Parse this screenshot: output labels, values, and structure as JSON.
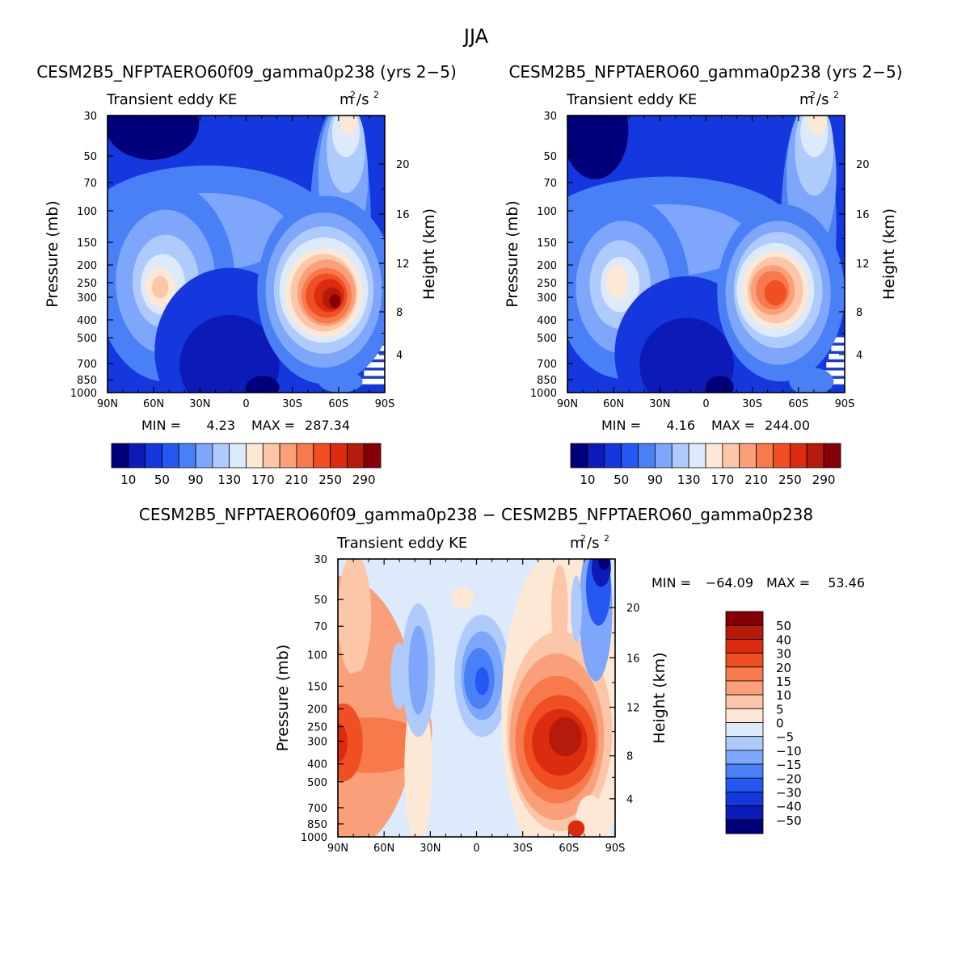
{
  "page": {
    "title": "JJA"
  },
  "chart_data": [
    {
      "type": "heatmap",
      "title": "CESM2B5_NFPTAERO60f09_gamma0p238 (yrs 2−5)",
      "subtitle_left": "Transient eddy KE",
      "units_base": "m",
      "units_exp1": "2",
      "units_mid": "/s",
      "units_exp2": "2",
      "ylabel": "Pressure (mb)",
      "ylabel_right": "Height (km)",
      "xticks": [
        "90N",
        "60N",
        "30N",
        "0",
        "30S",
        "60S",
        "90S"
      ],
      "yticks": [
        "30",
        "50",
        "70",
        "100",
        "150",
        "200",
        "250",
        "300",
        "400",
        "500",
        "700",
        "850",
        "1000"
      ],
      "height_ticks": [
        "20",
        "16",
        "12",
        "8",
        "4"
      ],
      "stats": {
        "min_label": "MIN =",
        "min": "4.23",
        "max_label": "MAX =",
        "max": "287.34"
      },
      "colorbar_labels": [
        "10",
        "50",
        "90",
        "130",
        "170",
        "210",
        "250",
        "290"
      ],
      "colorbar_colors": [
        "#00007a",
        "#0c1ab8",
        "#1438de",
        "#2458f0",
        "#4a80f6",
        "#7ea6fa",
        "#aecbfc",
        "#dceafc",
        "#fde8d5",
        "#fcc6a8",
        "#f9a07a",
        "#f67a4c",
        "#f04e23",
        "#dc2c10",
        "#b51a0a",
        "#850006"
      ]
    },
    {
      "type": "heatmap",
      "title": "CESM2B5_NFPTAERO60_gamma0p238 (yrs 2−5)",
      "subtitle_left": "Transient eddy KE",
      "units_base": "m",
      "units_exp1": "2",
      "units_mid": "/s",
      "units_exp2": "2",
      "ylabel": "Pressure (mb)",
      "ylabel_right": "Height (km)",
      "xticks": [
        "90N",
        "60N",
        "30N",
        "0",
        "30S",
        "60S",
        "90S"
      ],
      "yticks": [
        "30",
        "50",
        "70",
        "100",
        "150",
        "200",
        "250",
        "300",
        "400",
        "500",
        "700",
        "850",
        "1000"
      ],
      "height_ticks": [
        "20",
        "16",
        "12",
        "8",
        "4"
      ],
      "stats": {
        "min_label": "MIN =",
        "min": "4.16",
        "max_label": "MAX =",
        "max": "244.00"
      },
      "colorbar_labels": [
        "10",
        "50",
        "90",
        "130",
        "170",
        "210",
        "250",
        "290"
      ],
      "colorbar_colors": [
        "#00007a",
        "#0c1ab8",
        "#1438de",
        "#2458f0",
        "#4a80f6",
        "#7ea6fa",
        "#aecbfc",
        "#dceafc",
        "#fde8d5",
        "#fcc6a8",
        "#f9a07a",
        "#f67a4c",
        "#f04e23",
        "#dc2c10",
        "#b51a0a",
        "#850006"
      ]
    },
    {
      "type": "heatmap",
      "title": "CESM2B5_NFPTAERO60f09_gamma0p238 − CESM2B5_NFPTAERO60_gamma0p238",
      "subtitle_left": "Transient eddy KE",
      "units_base": "m",
      "units_exp1": "2",
      "units_mid": "/s",
      "units_exp2": "2",
      "ylabel": "Pressure (mb)",
      "ylabel_right": "Height (km)",
      "xticks": [
        "90N",
        "60N",
        "30N",
        "0",
        "30S",
        "60S",
        "90S"
      ],
      "yticks": [
        "30",
        "50",
        "70",
        "100",
        "150",
        "200",
        "250",
        "300",
        "400",
        "500",
        "700",
        "850",
        "1000"
      ],
      "height_ticks": [
        "20",
        "16",
        "12",
        "8",
        "4"
      ],
      "stats": {
        "min_label": "MIN =",
        "min": "−64.09",
        "max_label": "MAX =",
        "max": "53.46"
      },
      "colorbar_labels": [
        "50",
        "40",
        "30",
        "20",
        "15",
        "10",
        "5",
        "0",
        "−5",
        "−10",
        "−15",
        "−20",
        "−30",
        "−40",
        "−50"
      ],
      "colorbar_colors": [
        "#850006",
        "#b51a0a",
        "#dc2c10",
        "#f04e23",
        "#f67a4c",
        "#f9a07a",
        "#fcc6a8",
        "#fde8d5",
        "#dceafc",
        "#aecbfc",
        "#7ea6fa",
        "#4a80f6",
        "#2458f0",
        "#1438de",
        "#0c1ab8",
        "#00007a"
      ]
    }
  ]
}
